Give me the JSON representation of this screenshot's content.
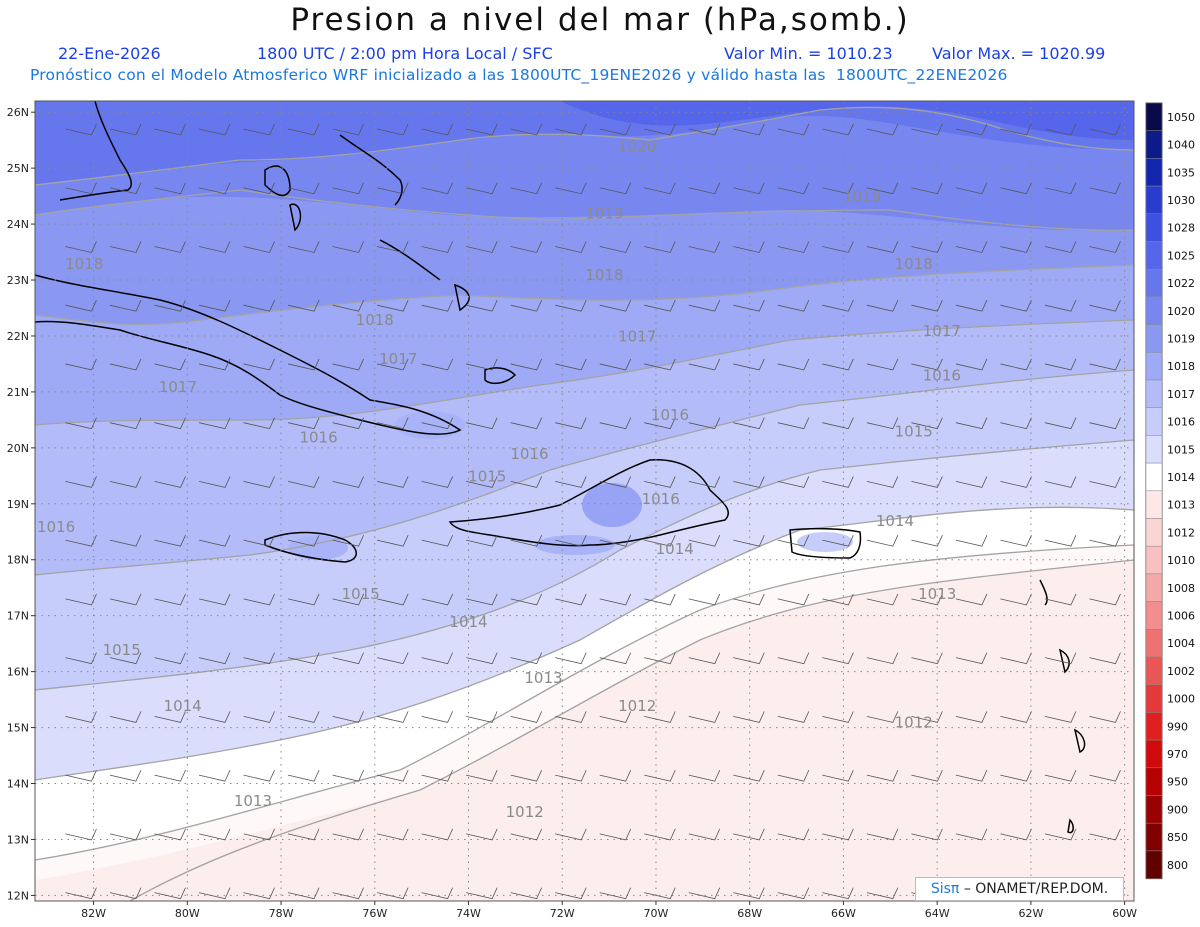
{
  "header": {
    "title": "Presion a nivel del mar (hPa,somb.)",
    "date": "22-Ene-2026",
    "time": "1800 UTC / 2:00 pm Hora Local / SFC",
    "min": "Valor Min. = 1010.23",
    "max": "Valor Max. = 1020.99",
    "model_line": "Pronóstico con el Modelo Atmosferico WRF inicializado a las 1800UTC_19ENE2026 y válido hasta las  1800UTC_22ENE2026"
  },
  "axes": {
    "lat_labels": [
      "26N",
      "25N",
      "24N",
      "23N",
      "22N",
      "21N",
      "20N",
      "19N",
      "18N",
      "17N",
      "16N",
      "15N",
      "14N",
      "13N",
      "12N"
    ],
    "lon_labels": [
      "82W",
      "80W",
      "78W",
      "76W",
      "74W",
      "72W",
      "70W",
      "68W",
      "66W",
      "64W",
      "62W",
      "60W"
    ]
  },
  "legend": {
    "levels": [
      "1050",
      "1040",
      "1035",
      "1030",
      "1028",
      "1025",
      "1022",
      "1020",
      "1019",
      "1018",
      "1017",
      "1016",
      "1015",
      "1014",
      "1013",
      "1012",
      "1010",
      "1008",
      "1006",
      "1004",
      "1002",
      "1000",
      "990",
      "970",
      "950",
      "900",
      "850",
      "800"
    ],
    "colors": [
      "#0a0a4a",
      "#0d1a8a",
      "#1226b0",
      "#2a3cd0",
      "#3d50e0",
      "#5566ea",
      "#6677ee",
      "#7887f0",
      "#8b98f2",
      "#9eaaf5",
      "#b3bcf8",
      "#c6cdfa",
      "#dadefc",
      "#ffffff",
      "#fde7e7",
      "#fbd4d4",
      "#f8c0c0",
      "#f5a8a8",
      "#f28e8e",
      "#ee7272",
      "#ea5555",
      "#e53838",
      "#e01f1f",
      "#d00a0a",
      "#b80000",
      "#9a0000",
      "#800000",
      "#600000"
    ]
  },
  "contour_labels": [
    {
      "t": "1020",
      "lon": -70.4,
      "lat": 25.3
    },
    {
      "t": "1019",
      "lon": -71.1,
      "lat": 24.1
    },
    {
      "t": "1019",
      "lon": -65.6,
      "lat": 24.4
    },
    {
      "t": "1018",
      "lon": -71.1,
      "lat": 23.0
    },
    {
      "t": "1018",
      "lon": -76.0,
      "lat": 22.2
    },
    {
      "t": "1018",
      "lon": -64.5,
      "lat": 23.2
    },
    {
      "t": "1018",
      "lon": -82.2,
      "lat": 23.2
    },
    {
      "t": "1017",
      "lon": -70.4,
      "lat": 21.9
    },
    {
      "t": "1017",
      "lon": -75.5,
      "lat": 21.5
    },
    {
      "t": "1017",
      "lon": -80.2,
      "lat": 21.0
    },
    {
      "t": "1017",
      "lon": -63.9,
      "lat": 22.0
    },
    {
      "t": "1016",
      "lon": -69.7,
      "lat": 20.5
    },
    {
      "t": "1016",
      "lon": -63.9,
      "lat": 21.2
    },
    {
      "t": "1016",
      "lon": -82.8,
      "lat": 18.5
    },
    {
      "t": "1016",
      "lon": -77.2,
      "lat": 20.1
    },
    {
      "t": "1016",
      "lon": -72.7,
      "lat": 19.8
    },
    {
      "t": "1016",
      "lon": -69.9,
      "lat": 19.0
    },
    {
      "t": "1015",
      "lon": -64.5,
      "lat": 20.2
    },
    {
      "t": "1015",
      "lon": -73.6,
      "lat": 19.4
    },
    {
      "t": "1015",
      "lon": -76.3,
      "lat": 17.3
    },
    {
      "t": "1015",
      "lon": -81.4,
      "lat": 16.3
    },
    {
      "t": "1014",
      "lon": -64.9,
      "lat": 18.6
    },
    {
      "t": "1014",
      "lon": -74.0,
      "lat": 16.8
    },
    {
      "t": "1014",
      "lon": -80.1,
      "lat": 15.3
    },
    {
      "t": "1014",
      "lon": -69.6,
      "lat": 18.1
    },
    {
      "t": "1013",
      "lon": -64.0,
      "lat": 17.3
    },
    {
      "t": "1013",
      "lon": -72.4,
      "lat": 15.8
    },
    {
      "t": "1013",
      "lon": -78.6,
      "lat": 13.6
    },
    {
      "t": "1012",
      "lon": -70.4,
      "lat": 15.3
    },
    {
      "t": "1012",
      "lon": -64.5,
      "lat": 15.0
    },
    {
      "t": "1012",
      "lon": -72.8,
      "lat": 13.4
    }
  ],
  "credit": {
    "brand": "Sisπ",
    "text": "– ONAMET/REP.DOM."
  }
}
